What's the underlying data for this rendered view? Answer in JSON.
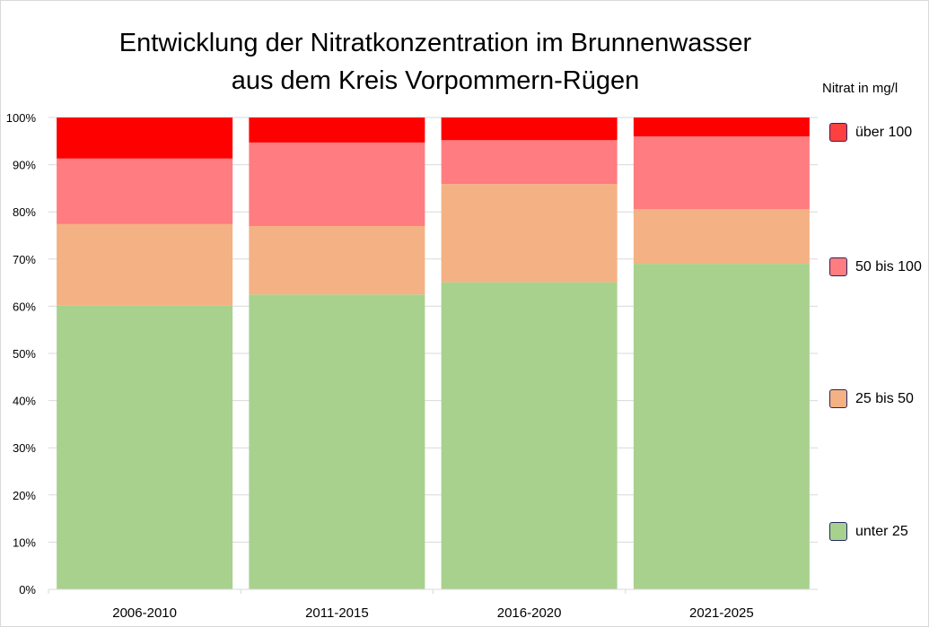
{
  "chart_data": {
    "type": "bar",
    "stacked": true,
    "title_lines": [
      "Entwicklung der Nitratkonzentration im Brunnenwasser",
      "aus dem Kreis Vorpommern-Rügen"
    ],
    "legend_title": "Nitrat in mg/l",
    "categories": [
      "2006-2010",
      "2011-2015",
      "2016-2020",
      "2021-2025"
    ],
    "series": [
      {
        "name": "unter 25",
        "color": "#a9d18e",
        "values": [
          60.1,
          62.5,
          65.1,
          69.0
        ]
      },
      {
        "name": "25 bis 50",
        "color": "#f4b183",
        "values": [
          17.3,
          14.5,
          20.8,
          11.6
        ]
      },
      {
        "name": "50 bis 100",
        "color": "#ff7c80",
        "values": [
          13.9,
          17.7,
          9.3,
          15.4
        ]
      },
      {
        "name": "über 100",
        "color": "#ff0000",
        "values": [
          8.7,
          5.3,
          4.8,
          4.0
        ]
      }
    ],
    "legend_swatch_colors": {
      "über 100": "#ff4040"
    },
    "ylim": [
      0,
      100
    ],
    "yticks": [
      "0%",
      "10%",
      "20%",
      "30%",
      "40%",
      "50%",
      "60%",
      "70%",
      "80%",
      "90%",
      "100%"
    ],
    "grid": true,
    "legend_placement": "right"
  }
}
